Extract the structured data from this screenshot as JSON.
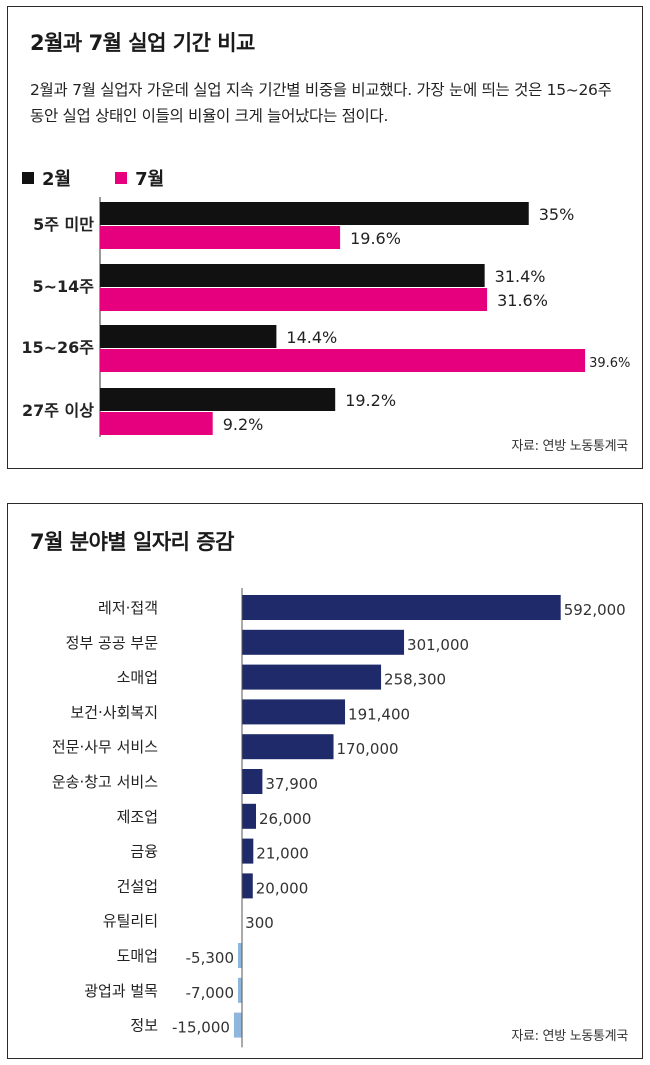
{
  "chart1": {
    "title": "2월과 7월 실업 기간 비교",
    "description": "2월과 7월 실업자 가운데 실업 지속 기간별 비중을 비교했다. 가장 눈에 띄는 것은 15~26주 동안 실업 상태인 이들의 비율이 크게 늘어났다는 점이다.",
    "source": "자료: 연방 노동통계국",
    "colors": {
      "feb": "#111111",
      "jul": "#e6007e"
    }
  },
  "chart2": {
    "title": "7월 분야별 일자리 증감",
    "source": "자료: 연방 노동통계국",
    "colors": {
      "bar": "#1f2a6b",
      "negative": "#8fb6dd"
    }
  },
  "chart_data": [
    {
      "type": "bar",
      "orientation": "horizontal",
      "title": "2월과 7월 실업 기간 비교",
      "categories": [
        "5주 미만",
        "5~14주",
        "15~26주",
        "27주 이상"
      ],
      "series": [
        {
          "name": "2월",
          "values": [
            35,
            31.4,
            14.4,
            19.2
          ],
          "labels": [
            "35%",
            "31.4%",
            "14.4%",
            "19.2%"
          ]
        },
        {
          "name": "7월",
          "values": [
            19.6,
            31.6,
            39.6,
            9.2
          ],
          "labels": [
            "19.6%",
            "31.6%",
            "39.6%",
            "9.2%"
          ]
        }
      ],
      "xlim": [
        0,
        40
      ],
      "legend": "top-left",
      "grid": false
    },
    {
      "type": "bar",
      "orientation": "horizontal",
      "title": "7월 분야별 일자리 증감",
      "categories": [
        "레저·접객",
        "정부 공공 부문",
        "소매업",
        "보건·사회복지",
        "전문·사무 서비스",
        "운송·창고 서비스",
        "제조업",
        "금융",
        "건설업",
        "유틸리티",
        "도매업",
        "광업과 벌목",
        "정보"
      ],
      "values": [
        592000,
        301000,
        258300,
        191400,
        170000,
        37900,
        26000,
        21000,
        20000,
        300,
        -5300,
        -7000,
        -15000
      ],
      "labels": [
        "592,000",
        "301,000",
        "258,300",
        "191,400",
        "170,000",
        "37,900",
        "26,000",
        "21,000",
        "20,000",
        "300",
        "-5,300",
        "-7,000",
        "-15,000"
      ],
      "xlim": [
        -15000,
        600000
      ],
      "grid": false
    }
  ]
}
